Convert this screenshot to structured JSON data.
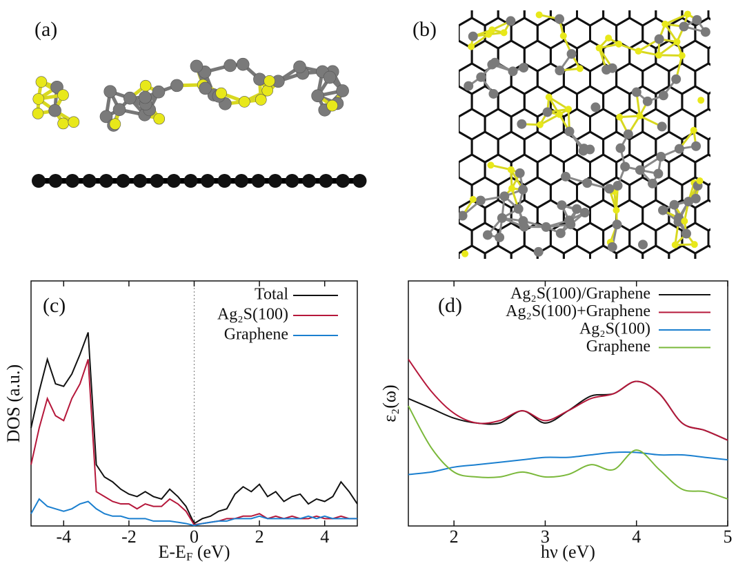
{
  "structure_panels": [
    {
      "label": "(a)"
    },
    {
      "label": "(b)"
    }
  ],
  "chart_data": [
    {
      "type": "line",
      "panel_label": "(c)",
      "xlabel": {
        "main": "E-E",
        "sub": "F",
        "rest": " (eV)"
      },
      "ylabel": "DOS (a.u.)",
      "xlim": [
        -5,
        5
      ],
      "xticks": [
        -4,
        -2,
        0,
        2,
        4
      ],
      "ylim": [
        0,
        100
      ],
      "vline_x": 0,
      "legend": "upper right",
      "x": [
        -5,
        -4.75,
        -4.5,
        -4.25,
        -4,
        -3.75,
        -3.5,
        -3.25,
        -3,
        -2.75,
        -2.5,
        -2.25,
        -2,
        -1.75,
        -1.5,
        -1.25,
        -1,
        -0.75,
        -0.5,
        -0.25,
        0,
        0.25,
        0.5,
        0.75,
        1,
        1.25,
        1.5,
        1.75,
        2,
        2.25,
        2.5,
        2.75,
        3,
        3.25,
        3.5,
        3.75,
        4,
        4.25,
        4.5,
        4.75,
        5
      ],
      "series": [
        {
          "name": "Total",
          "color": "#111111",
          "values": [
            40,
            55,
            68,
            58,
            57,
            62,
            70,
            79,
            25,
            20,
            18,
            15,
            13,
            12,
            14,
            12,
            11,
            15,
            12,
            8,
            1,
            3,
            4,
            6,
            7,
            13,
            16,
            14,
            17,
            12,
            14,
            10,
            12,
            13,
            9,
            11,
            10,
            12,
            18,
            14,
            9
          ]
        },
        {
          "name": "Ag₂S(100)",
          "color": "#b5173a",
          "values": [
            25,
            40,
            52,
            45,
            43,
            52,
            58,
            68,
            14,
            12,
            10,
            9,
            9,
            7,
            9,
            8,
            8,
            11,
            9,
            6,
            0.5,
            1,
            1.5,
            2,
            3,
            3,
            4,
            4,
            5,
            3,
            4,
            3,
            4,
            3,
            3,
            4,
            3,
            3,
            4,
            3,
            3
          ]
        },
        {
          "name": "Graphene",
          "color": "#1a7fcf",
          "values": [
            5,
            11,
            8,
            7,
            6,
            7,
            9,
            10,
            7,
            5,
            4,
            4,
            3,
            3,
            3,
            2,
            2,
            2,
            1.5,
            1,
            0.2,
            1,
            1.5,
            2,
            2,
            3,
            3,
            3,
            4,
            3,
            3,
            3,
            3,
            3,
            4,
            3,
            4,
            3,
            3,
            3,
            3
          ]
        }
      ]
    },
    {
      "type": "line",
      "panel_label": "(d)",
      "xlabel": {
        "main": "hν (eV)"
      },
      "ylabel": "ε₂(ω)",
      "xlim": [
        1.5,
        5
      ],
      "xticks": [
        2,
        3,
        4,
        5
      ],
      "ylim": [
        0,
        100
      ],
      "legend": "upper right",
      "x": [
        1.5,
        1.75,
        2,
        2.25,
        2.5,
        2.75,
        3,
        3.25,
        3.5,
        3.75,
        4,
        4.25,
        4.5,
        4.75,
        5
      ],
      "series": [
        {
          "name": "Ag₂S(100)/Graphene",
          "color": "#111111",
          "values": [
            52,
            48,
            44,
            42,
            42,
            47,
            42,
            47,
            53,
            54,
            59,
            54,
            42,
            39,
            35
          ]
        },
        {
          "name": "Ag₂S(100)+Graphene",
          "color": "#b5173a",
          "values": [
            68,
            55,
            46,
            42,
            43,
            47,
            43,
            47,
            52,
            54,
            59,
            54,
            42,
            39,
            35
          ]
        },
        {
          "name": "Ag₂S(100)",
          "color": "#1a7fcf",
          "values": [
            21,
            22,
            24,
            25,
            26,
            27,
            28,
            28,
            29,
            30,
            30,
            29,
            29,
            28,
            27
          ]
        },
        {
          "name": "Graphene",
          "color": "#7ab83a",
          "values": [
            49,
            32,
            22,
            20,
            20,
            22,
            20,
            21,
            25,
            23,
            31,
            23,
            15,
            14,
            11
          ]
        }
      ]
    }
  ]
}
